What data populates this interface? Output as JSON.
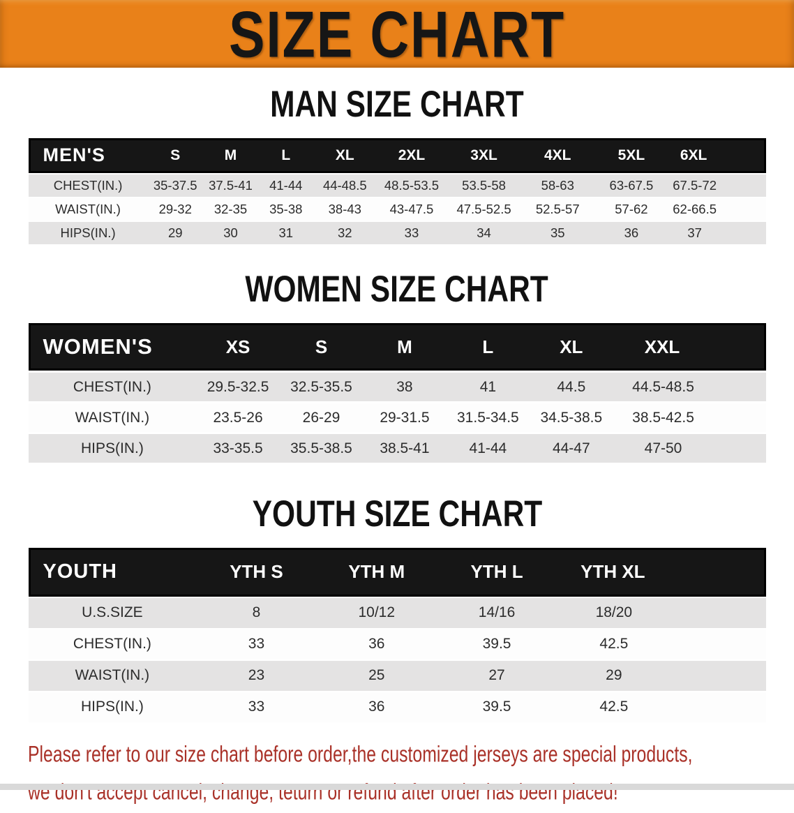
{
  "banner": {
    "title": "SIZE CHART"
  },
  "sections": [
    {
      "heading": "MAN SIZE CHART",
      "table": {
        "corner_label": "MEN'S",
        "columns": [
          "S",
          "M",
          "L",
          "XL",
          "2XL",
          "3XL",
          "4XL",
          "5XL",
          "6XL"
        ],
        "rows": [
          {
            "label": "CHEST(IN.)",
            "values": [
              "35-37.5",
              "37.5-41",
              "41-44",
              "44-48.5",
              "48.5-53.5",
              "53.5-58",
              "58-63",
              "63-67.5",
              "67.5-72"
            ]
          },
          {
            "label": "WAIST(IN.)",
            "values": [
              "29-32",
              "32-35",
              "35-38",
              "38-43",
              "43-47.5",
              "47.5-52.5",
              "52.5-57",
              "57-62",
              "62-66.5"
            ]
          },
          {
            "label": "HIPS(IN.)",
            "values": [
              "29",
              "30",
              "31",
              "32",
              "33",
              "34",
              "35",
              "36",
              "37"
            ]
          }
        ]
      }
    },
    {
      "heading": "WOMEN SIZE CHART",
      "table": {
        "corner_label": "WOMEN'S",
        "columns": [
          "XS",
          "S",
          "M",
          "L",
          "XL",
          "XXL"
        ],
        "rows": [
          {
            "label": "CHEST(IN.)",
            "values": [
              "29.5-32.5",
              "32.5-35.5",
              "38",
              "41",
              "44.5",
              "44.5-48.5"
            ]
          },
          {
            "label": "WAIST(IN.)",
            "values": [
              "23.5-26",
              "26-29",
              "29-31.5",
              "31.5-34.5",
              "34.5-38.5",
              "38.5-42.5"
            ]
          },
          {
            "label": "HIPS(IN.)",
            "values": [
              "33-35.5",
              "35.5-38.5",
              "38.5-41",
              "41-44",
              "44-47",
              "47-50"
            ]
          }
        ]
      }
    },
    {
      "heading": "YOUTH SIZE CHART",
      "table": {
        "corner_label": "YOUTH",
        "columns": [
          "YTH S",
          "YTH M",
          "YTH L",
          "YTH XL"
        ],
        "rows": [
          {
            "label": "U.S.SIZE",
            "values": [
              "8",
              "10/12",
              "14/16",
              "18/20"
            ]
          },
          {
            "label": "CHEST(IN.)",
            "values": [
              "33",
              "36",
              "39.5",
              "42.5"
            ]
          },
          {
            "label": "WAIST(IN.)",
            "values": [
              "23",
              "25",
              "27",
              "29"
            ]
          },
          {
            "label": "HIPS(IN.)",
            "values": [
              "33",
              "36",
              "39.5",
              "42.5"
            ]
          }
        ]
      }
    }
  ],
  "disclaimer": {
    "line1": "Please refer to our size chart before order,the customized jerseys are special products,",
    "line2": "we don't accept cancel, change, teturn or refund after order has been placed!"
  },
  "colors": {
    "banner_bg": "#e98119",
    "header_bg": "#161616",
    "row_alt_bg": "#e4e3e3",
    "disclaimer_text": "#a93128"
  }
}
